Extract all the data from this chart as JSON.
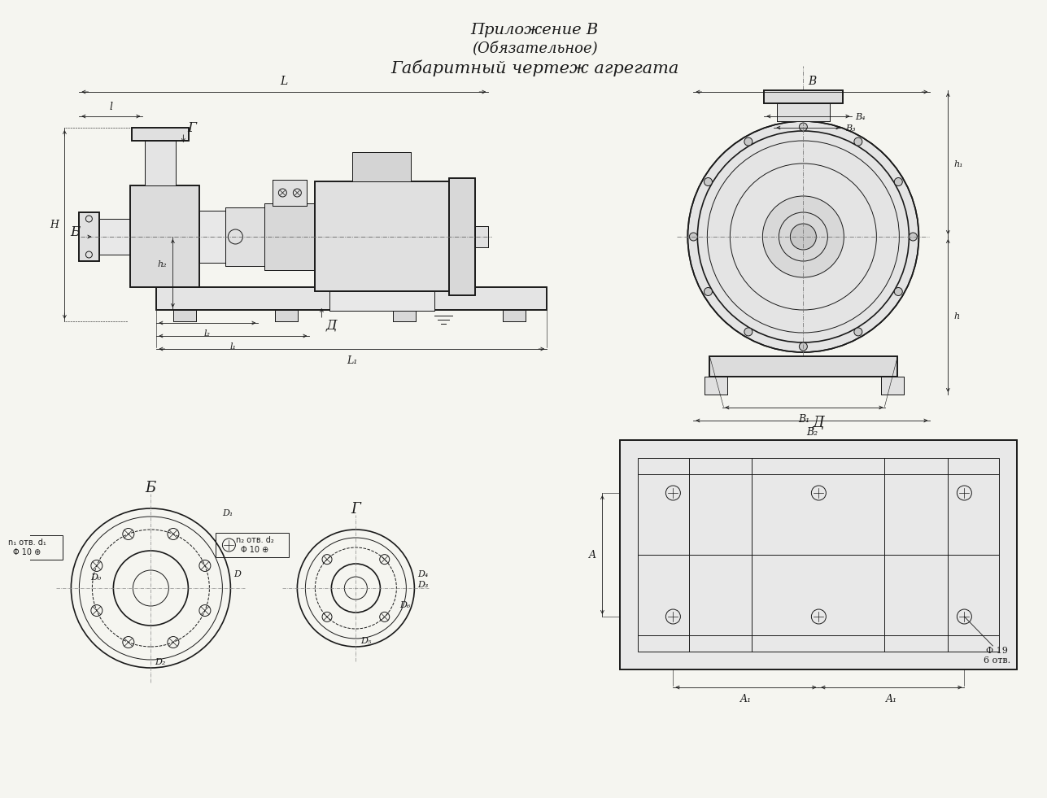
{
  "title_line1": "Приложение В",
  "title_line2": "(Обязательное)",
  "title_line3": "Габаритный чертеж агрегата",
  "bg_color": "#f5f5f0",
  "line_color": "#1a1a1a",
  "labels": {
    "L": "L",
    "l": "l",
    "l1": "l₁",
    "l2": "l₂",
    "L1": "L₁",
    "H": "H",
    "h": "h",
    "h1": "h₁",
    "h2": "h₂",
    "B": "B",
    "B1": "B₁",
    "B2": "B₂",
    "B3": "B₃",
    "B4": "B₄",
    "A": "A",
    "A1": "A₁",
    "Б": "Б",
    "Г": "Г",
    "Д": "Д",
    "D": "D",
    "D0": "D₀",
    "D1": "D₁",
    "D2": "D₂",
    "D3": "D₃",
    "D4": "D₄",
    "D5": "D₅",
    "D6": "D₆",
    "n_otv_d1": "n₁ отв. d₁",
    "n_otv_d2": "n₂ отв. d₂",
    "phi19": "Φ 19",
    "6otv": "6 отв."
  }
}
